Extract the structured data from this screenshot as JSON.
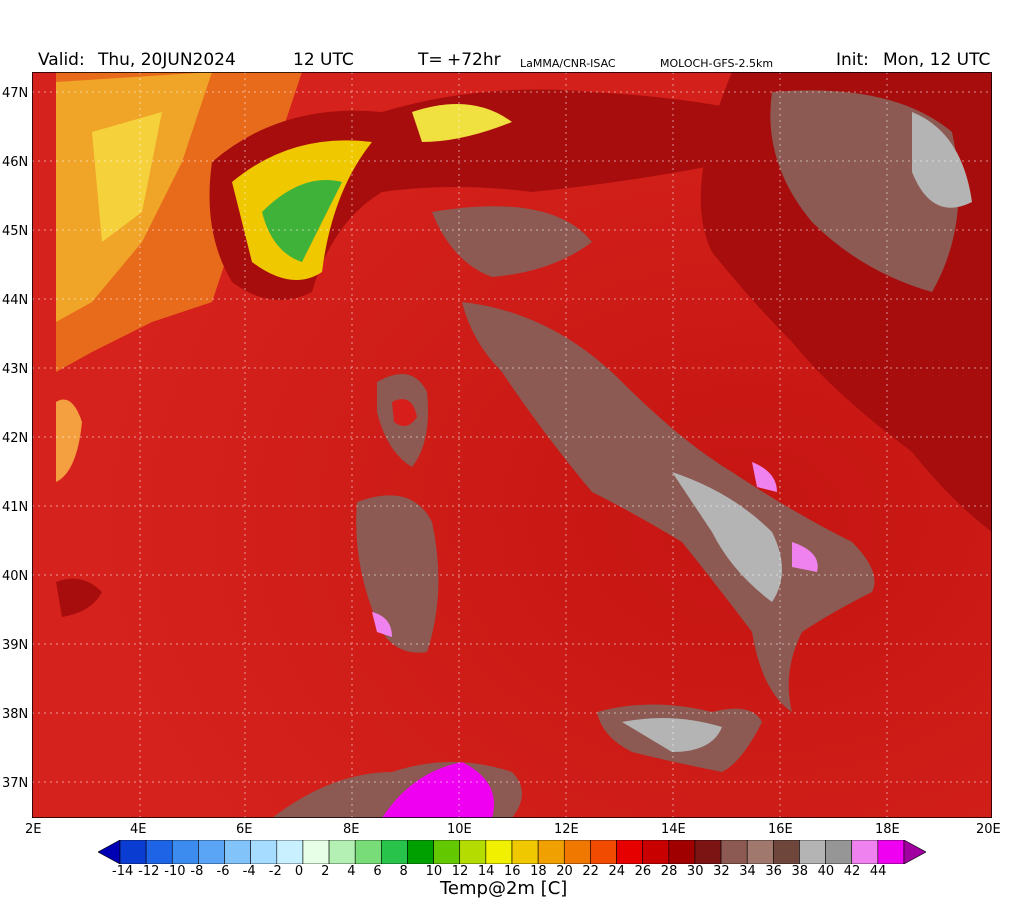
{
  "header": {
    "valid_label": "Valid:",
    "valid_value": "Thu, 20JUN2024",
    "valid_time": "12 UTC",
    "t_label": "T=",
    "t_value": "+72hr",
    "source": "LaMMA/CNR-ISAC",
    "model": "MOLOCH-GFS-2.5km",
    "init_label": "Init:",
    "init_value": "Mon, 12 UTC"
  },
  "map": {
    "lat_labels": [
      "47N",
      "46N",
      "45N",
      "44N",
      "43N",
      "42N",
      "41N",
      "40N",
      "39N",
      "38N",
      "37N"
    ],
    "lon_labels": [
      "2E",
      "4E",
      "6E",
      "8E",
      "10E",
      "12E",
      "14E",
      "16E",
      "18E",
      "20E"
    ],
    "sea_color": "#d81e1a",
    "land_hot_color": "#8c5a52",
    "alps_cool_color": "#3fb23a",
    "west_cool_color": "#f0a020"
  },
  "colorbar": {
    "title": "Temp@2m [C]",
    "ticks": [
      "-14",
      "-12",
      "-10",
      "-8",
      "-6",
      "-4",
      "-2",
      "0",
      "2",
      "4",
      "6",
      "8",
      "10",
      "12",
      "14",
      "16",
      "18",
      "20",
      "22",
      "24",
      "26",
      "28",
      "30",
      "32",
      "34",
      "36",
      "38",
      "40",
      "42",
      "44"
    ],
    "colors": [
      "#0000b4",
      "#0a3cd2",
      "#1e64e6",
      "#3c8cf0",
      "#5aa5f5",
      "#82c3fa",
      "#a5dcff",
      "#c8f0ff",
      "#e6ffe6",
      "#b4f0b4",
      "#78dc78",
      "#28c34b",
      "#00a000",
      "#64c800",
      "#b4dc00",
      "#f0f000",
      "#f0c800",
      "#f0a000",
      "#f07800",
      "#f04b00",
      "#e60000",
      "#c80000",
      "#a00000",
      "#7d1414",
      "#8c5a52",
      "#a0786e",
      "#6e463c",
      "#b4b4b4",
      "#969696",
      "#f082f0",
      "#f000f0",
      "#a000a0"
    ]
  }
}
